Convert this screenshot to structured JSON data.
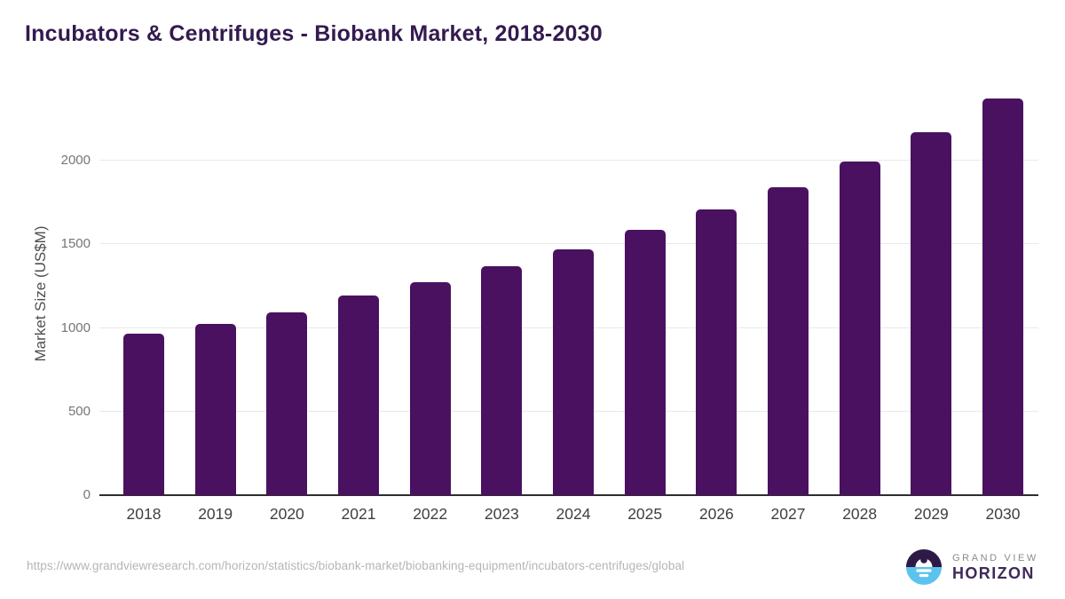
{
  "page": {
    "title": "Incubators & Centrifuges - Biobank Market, 2018-2030"
  },
  "chart_data": {
    "type": "bar",
    "title": "Incubators & Centrifuges - Biobank Market, 2018-2030",
    "categories": [
      "2018",
      "2019",
      "2020",
      "2021",
      "2022",
      "2023",
      "2024",
      "2025",
      "2026",
      "2027",
      "2028",
      "2029",
      "2030"
    ],
    "values": [
      965,
      1025,
      1095,
      1195,
      1275,
      1370,
      1470,
      1585,
      1710,
      1840,
      1995,
      2170,
      2370
    ],
    "xlabel": "",
    "ylabel": "Market Size (US$M)",
    "y_ticks": [
      0,
      500,
      1000,
      1500,
      2000
    ],
    "ylim": [
      0,
      2400
    ],
    "grid": "horizontal",
    "legend": "none",
    "bar_color": "#4a1160"
  },
  "footer": {
    "source_url": "https://www.grandviewresearch.com/horizon/statistics/biobank-market/biobanking-equipment/incubators-centrifuges/global",
    "logo": {
      "brand_top": "GRAND VIEW",
      "brand_bottom": "HORIZON"
    }
  },
  "colors": {
    "title_text": "#331a4f",
    "bar": "#4a1160",
    "axis_tick_text": "#757575",
    "x_tick_text": "#3f3f3f",
    "gridline": "#e9e9e9",
    "baseline": "#2e2e2e",
    "url_text": "#b5b5b5",
    "logo_dark": "#2e1a47",
    "logo_blue": "#5bc3ee",
    "logo_brand_top_text": "#8b8b8b",
    "logo_brand_bottom_text": "#3e2a5a"
  }
}
